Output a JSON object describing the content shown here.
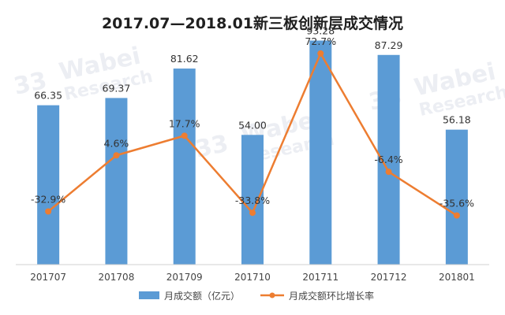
{
  "chart_data": {
    "type": "bar",
    "title": "2017.07—2018.01新三板创新层成交情况",
    "categories": [
      "201707",
      "201708",
      "201709",
      "201710",
      "201711",
      "201712",
      "201801"
    ],
    "series": [
      {
        "name": "月成交额（亿元）",
        "type": "bar",
        "color": "#5b9bd5",
        "values": [
          66.35,
          69.37,
          81.62,
          54.0,
          93.28,
          87.29,
          56.18
        ],
        "labels": [
          "66.35",
          "69.37",
          "81.62",
          "54.00",
          "93.28",
          "87.29",
          "56.18"
        ]
      },
      {
        "name": "月成交额环比增长率",
        "type": "line",
        "color": "#ed7d31",
        "values": [
          -32.9,
          4.6,
          17.7,
          -33.8,
          72.7,
          -6.4,
          -35.6
        ],
        "labels": [
          "-32.9%",
          "4.6%",
          "17.7%",
          "-33.8%",
          "72.7%",
          "-6.4%",
          "-35.6%"
        ]
      }
    ],
    "bar_axis_range": [
      0,
      100
    ],
    "line_axis_range": [
      -150,
      100
    ],
    "grid": false,
    "legend_position": "bottom"
  },
  "watermark": {
    "brand": "Wabei",
    "sub": "Research",
    "logo_text": "33"
  }
}
